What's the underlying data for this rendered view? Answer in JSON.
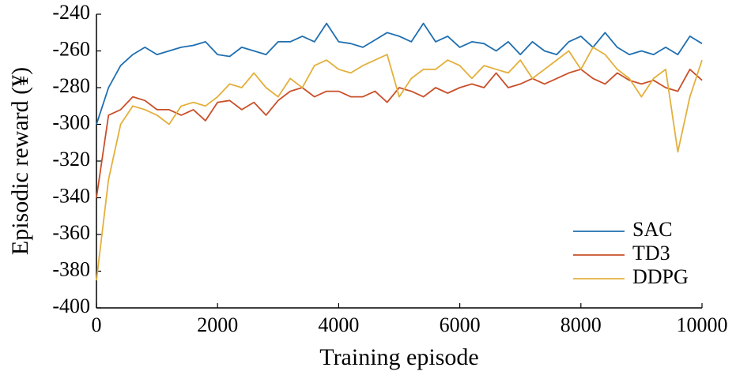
{
  "chart_data": {
    "type": "line",
    "xlabel": "Training episode",
    "ylabel": "Episodic reward (¥)",
    "x": [
      0,
      200,
      400,
      600,
      800,
      1000,
      1200,
      1400,
      1600,
      1800,
      2000,
      2200,
      2400,
      2600,
      2800,
      3000,
      3200,
      3400,
      3600,
      3800,
      4000,
      4200,
      4400,
      4600,
      4800,
      5000,
      5200,
      5400,
      5600,
      5800,
      6000,
      6200,
      6400,
      6600,
      6800,
      7000,
      7200,
      7400,
      7600,
      7800,
      8000,
      8200,
      8400,
      8600,
      8800,
      9000,
      9200,
      9400,
      9600,
      9800,
      10000
    ],
    "series": [
      {
        "name": "SAC",
        "color": "#1f6fb0",
        "values": [
          -300,
          -280,
          -268,
          -262,
          -258,
          -262,
          -260,
          -258,
          -257,
          -255,
          -262,
          -263,
          -258,
          -260,
          -262,
          -255,
          -255,
          -252,
          -255,
          -245,
          -255,
          -256,
          -258,
          -254,
          -250,
          -252,
          -255,
          -245,
          -255,
          -252,
          -258,
          -255,
          -256,
          -260,
          -255,
          -262,
          -255,
          -260,
          -262,
          -255,
          -252,
          -258,
          -250,
          -258,
          -262,
          -260,
          -262,
          -258,
          -262,
          -252,
          -256
        ]
      },
      {
        "name": "TD3",
        "color": "#c9502a",
        "values": [
          -340,
          -295,
          -292,
          -285,
          -287,
          -292,
          -292,
          -295,
          -292,
          -298,
          -288,
          -287,
          -292,
          -288,
          -295,
          -287,
          -282,
          -280,
          -285,
          -282,
          -282,
          -285,
          -285,
          -282,
          -288,
          -280,
          -282,
          -285,
          -280,
          -283,
          -280,
          -278,
          -280,
          -272,
          -280,
          -278,
          -275,
          -278,
          -275,
          -272,
          -270,
          -275,
          -278,
          -272,
          -276,
          -278,
          -276,
          -280,
          -282,
          -270,
          -276
        ]
      },
      {
        "name": "DDPG",
        "color": "#e3b03c",
        "values": [
          -385,
          -330,
          -300,
          -290,
          -292,
          -295,
          -300,
          -290,
          -288,
          -290,
          -285,
          -278,
          -280,
          -272,
          -280,
          -285,
          -275,
          -280,
          -268,
          -265,
          -270,
          -272,
          -268,
          -265,
          -262,
          -285,
          -275,
          -270,
          -270,
          -265,
          -268,
          -275,
          -268,
          -270,
          -272,
          -265,
          -275,
          -270,
          -265,
          -260,
          -270,
          -258,
          -262,
          -270,
          -275,
          -285,
          -275,
          -270,
          -315,
          -285,
          -265
        ]
      }
    ],
    "xlim": [
      0,
      10000
    ],
    "xticks": [
      0,
      2000,
      4000,
      6000,
      8000,
      10000
    ],
    "ylim": [
      -400,
      -240
    ],
    "yticks": [
      -400,
      -380,
      -360,
      -340,
      -320,
      -300,
      -280,
      -260,
      -240
    ],
    "legend": "lower right"
  }
}
